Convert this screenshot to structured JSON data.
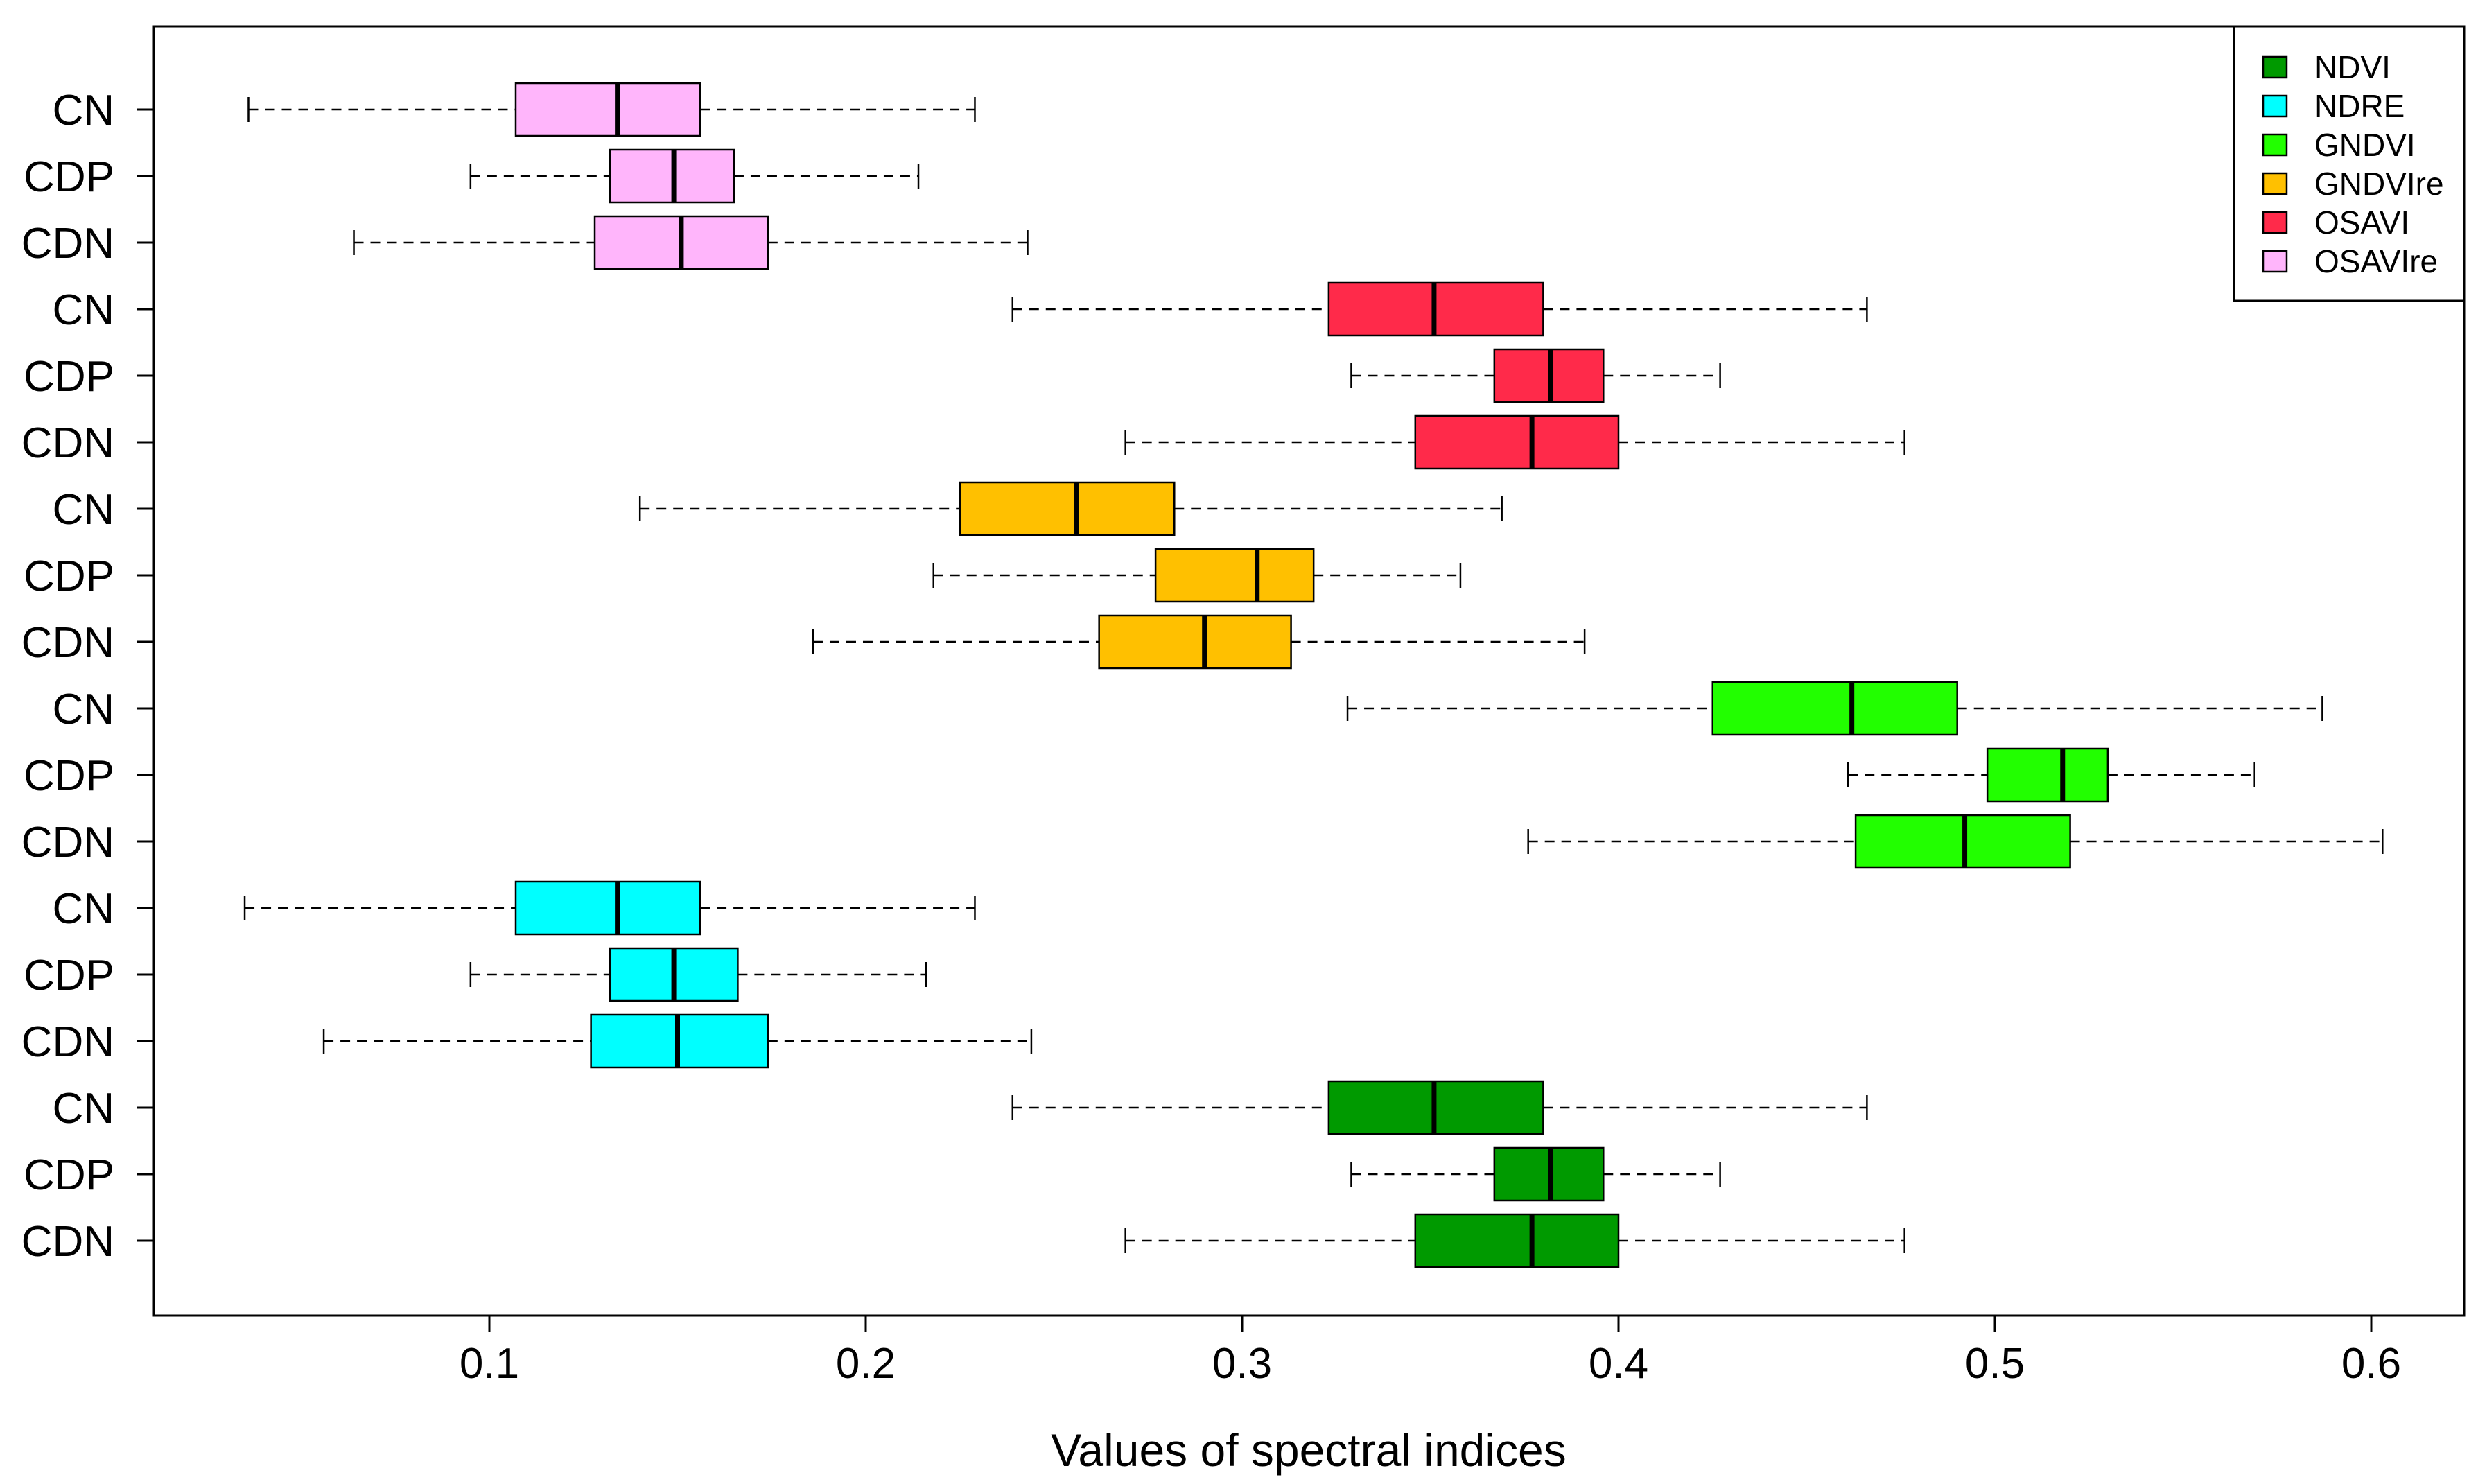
{
  "chart_data": {
    "type": "boxplot",
    "orientation": "horizontal",
    "title": "",
    "xlabel": "Values of spectral indices",
    "ylabel": "",
    "xlim": [
      0.01,
      0.625
    ],
    "xticks": [
      0.1,
      0.2,
      0.3,
      0.4,
      0.5,
      0.6
    ],
    "xtick_labels": [
      "0.1",
      "0.2",
      "0.3",
      "0.4",
      "0.5",
      "0.6"
    ],
    "grid": false,
    "legend_position": "top-right",
    "legend": [
      {
        "name": "NDVI",
        "color": "#009a00"
      },
      {
        "name": "NDRE",
        "color": "#00ffff"
      },
      {
        "name": "GNDVI",
        "color": "#22ff00"
      },
      {
        "name": "GNDVIre",
        "color": "#ffc000"
      },
      {
        "name": "OSAVI",
        "color": "#ff2a4a"
      },
      {
        "name": "OSAVIre",
        "color": "#ffb5fb"
      }
    ],
    "boxes": [
      {
        "label": "CN",
        "series": "OSAVIre",
        "whisker_low": 0.036,
        "q1": 0.107,
        "median": 0.134,
        "q3": 0.156,
        "whisker_high": 0.229
      },
      {
        "label": "CDP",
        "series": "OSAVIre",
        "whisker_low": 0.095,
        "q1": 0.132,
        "median": 0.149,
        "q3": 0.165,
        "whisker_high": 0.214
      },
      {
        "label": "CDN",
        "series": "OSAVIre",
        "whisker_low": 0.064,
        "q1": 0.128,
        "median": 0.151,
        "q3": 0.174,
        "whisker_high": 0.243
      },
      {
        "label": "CN",
        "series": "OSAVI",
        "whisker_low": 0.239,
        "q1": 0.323,
        "median": 0.351,
        "q3": 0.38,
        "whisker_high": 0.466
      },
      {
        "label": "CDP",
        "series": "OSAVI",
        "whisker_low": 0.329,
        "q1": 0.367,
        "median": 0.382,
        "q3": 0.396,
        "whisker_high": 0.427
      },
      {
        "label": "CDN",
        "series": "OSAVI",
        "whisker_low": 0.269,
        "q1": 0.346,
        "median": 0.377,
        "q3": 0.4,
        "whisker_high": 0.476
      },
      {
        "label": "CN",
        "series": "GNDVIre",
        "whisker_low": 0.14,
        "q1": 0.225,
        "median": 0.256,
        "q3": 0.282,
        "whisker_high": 0.369
      },
      {
        "label": "CDP",
        "series": "GNDVIre",
        "whisker_low": 0.218,
        "q1": 0.277,
        "median": 0.304,
        "q3": 0.319,
        "whisker_high": 0.358
      },
      {
        "label": "CDN",
        "series": "GNDVIre",
        "whisker_low": 0.186,
        "q1": 0.262,
        "median": 0.29,
        "q3": 0.313,
        "whisker_high": 0.391
      },
      {
        "label": "CN",
        "series": "GNDVI",
        "whisker_low": 0.328,
        "q1": 0.425,
        "median": 0.462,
        "q3": 0.49,
        "whisker_high": 0.587
      },
      {
        "label": "CDP",
        "series": "GNDVI",
        "whisker_low": 0.461,
        "q1": 0.498,
        "median": 0.518,
        "q3": 0.53,
        "whisker_high": 0.569
      },
      {
        "label": "CDN",
        "series": "GNDVI",
        "whisker_low": 0.376,
        "q1": 0.463,
        "median": 0.492,
        "q3": 0.52,
        "whisker_high": 0.603
      },
      {
        "label": "CN",
        "series": "NDRE",
        "whisker_low": 0.035,
        "q1": 0.107,
        "median": 0.134,
        "q3": 0.156,
        "whisker_high": 0.229
      },
      {
        "label": "CDP",
        "series": "NDRE",
        "whisker_low": 0.095,
        "q1": 0.132,
        "median": 0.149,
        "q3": 0.166,
        "whisker_high": 0.216
      },
      {
        "label": "CDN",
        "series": "NDRE",
        "whisker_low": 0.056,
        "q1": 0.127,
        "median": 0.15,
        "q3": 0.174,
        "whisker_high": 0.244
      },
      {
        "label": "CN",
        "series": "NDVI",
        "whisker_low": 0.239,
        "q1": 0.323,
        "median": 0.351,
        "q3": 0.38,
        "whisker_high": 0.466
      },
      {
        "label": "CDP",
        "series": "NDVI",
        "whisker_low": 0.329,
        "q1": 0.367,
        "median": 0.382,
        "q3": 0.396,
        "whisker_high": 0.427
      },
      {
        "label": "CDN",
        "series": "NDVI",
        "whisker_low": 0.269,
        "q1": 0.346,
        "median": 0.377,
        "q3": 0.4,
        "whisker_high": 0.476
      }
    ]
  }
}
